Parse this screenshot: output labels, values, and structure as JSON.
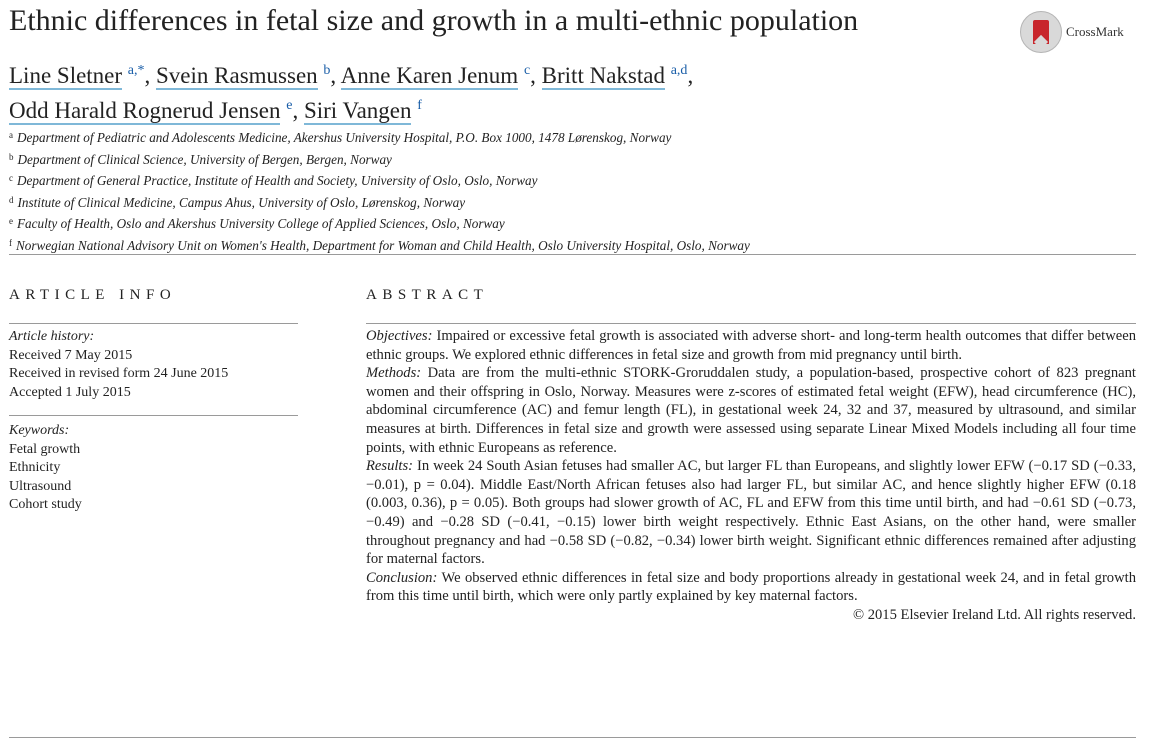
{
  "title": "Ethnic differences in fetal size and growth in a multi-ethnic population",
  "crossmark": {
    "label": "CrossMark",
    "icon": "crossmark-icon"
  },
  "authors": [
    {
      "name": "Line Sletner",
      "sup": "a,*",
      "sep": ", "
    },
    {
      "name": "Svein Rasmussen",
      "sup": "b",
      "sep": ", "
    },
    {
      "name": "Anne Karen Jenum",
      "sup": "c",
      "sep": ", "
    },
    {
      "name": "Britt Nakstad",
      "sup": "a,d",
      "sep": ","
    },
    {
      "name": "Odd Harald Rognerud Jensen",
      "sup": "e",
      "sep": ", "
    },
    {
      "name": "Siri Vangen",
      "sup": "f",
      "sep": ""
    }
  ],
  "affiliations": [
    {
      "key": "a",
      "text": "Department of Pediatric and Adolescents Medicine, Akershus University Hospital, P.O. Box 1000, 1478 Lørenskog, Norway"
    },
    {
      "key": "b",
      "text": "Department of Clinical Science, University of Bergen, Bergen, Norway"
    },
    {
      "key": "c",
      "text": "Department of General Practice, Institute of Health and Society, University of Oslo, Oslo, Norway"
    },
    {
      "key": "d",
      "text": "Institute of Clinical Medicine, Campus Ahus, University of Oslo, Lørenskog, Norway"
    },
    {
      "key": "e",
      "text": "Faculty of Health, Oslo and Akershus University College of Applied Sciences, Oslo, Norway"
    },
    {
      "key": "f",
      "text": "Norwegian National Advisory Unit on Women's Health, Department for Woman and Child Health, Oslo University Hospital, Oslo, Norway"
    }
  ],
  "article_info": {
    "heading": "ARTICLE INFO",
    "history_label": "Article history:",
    "history": [
      "Received 7 May 2015",
      "Received in revised form 24 June 2015",
      "Accepted 1 July 2015"
    ],
    "keywords_label": "Keywords:",
    "keywords": [
      "Fetal growth",
      "Ethnicity",
      "Ultrasound",
      "Cohort study"
    ]
  },
  "abstract": {
    "heading": "ABSTRACT",
    "objectives_label": "Objectives:",
    "objectives": "Impaired or excessive fetal growth is associated with adverse short- and long-term health outcomes that differ between ethnic groups. We explored ethnic differences in fetal size and growth from mid pregnancy until birth.",
    "methods_label": "Methods:",
    "methods": "Data are from the multi-ethnic STORK-Groruddalen study, a population-based, prospective cohort of 823 pregnant women and their offspring in Oslo, Norway. Measures were z-scores of estimated fetal weight (EFW), head circumference (HC), abdominal circumference (AC) and femur length (FL), in gestational week 24, 32 and 37, measured by ultrasound, and similar measures at birth. Differences in fetal size and growth were assessed using separate Linear Mixed Models including all four time points, with ethnic Europeans as reference.",
    "results_label": "Results:",
    "results": "In week 24 South Asian fetuses had smaller AC, but larger FL than Europeans, and slightly lower EFW (−0.17 SD (−0.33, −0.01), p = 0.04). Middle East/North African fetuses also had larger FL, but similar AC, and hence slightly higher EFW (0.18 (0.003, 0.36), p = 0.05). Both groups had slower growth of AC, FL and EFW from this time until birth, and had −0.61 SD (−0.73, −0.49) and −0.28 SD (−0.41, −0.15) lower birth weight respectively. Ethnic East Asians, on the other hand, were smaller throughout pregnancy and had −0.58 SD (−0.82, −0.34) lower birth weight. Significant ethnic differences remained after adjusting for maternal factors.",
    "conclusion_label": "Conclusion:",
    "conclusion": "We observed ethnic differences in fetal size and body proportions already in gestational week 24, and in fetal growth from this time until birth, which were only partly explained by key maternal factors.",
    "copyright": "© 2015 Elsevier Ireland Ltd. All rights reserved."
  }
}
